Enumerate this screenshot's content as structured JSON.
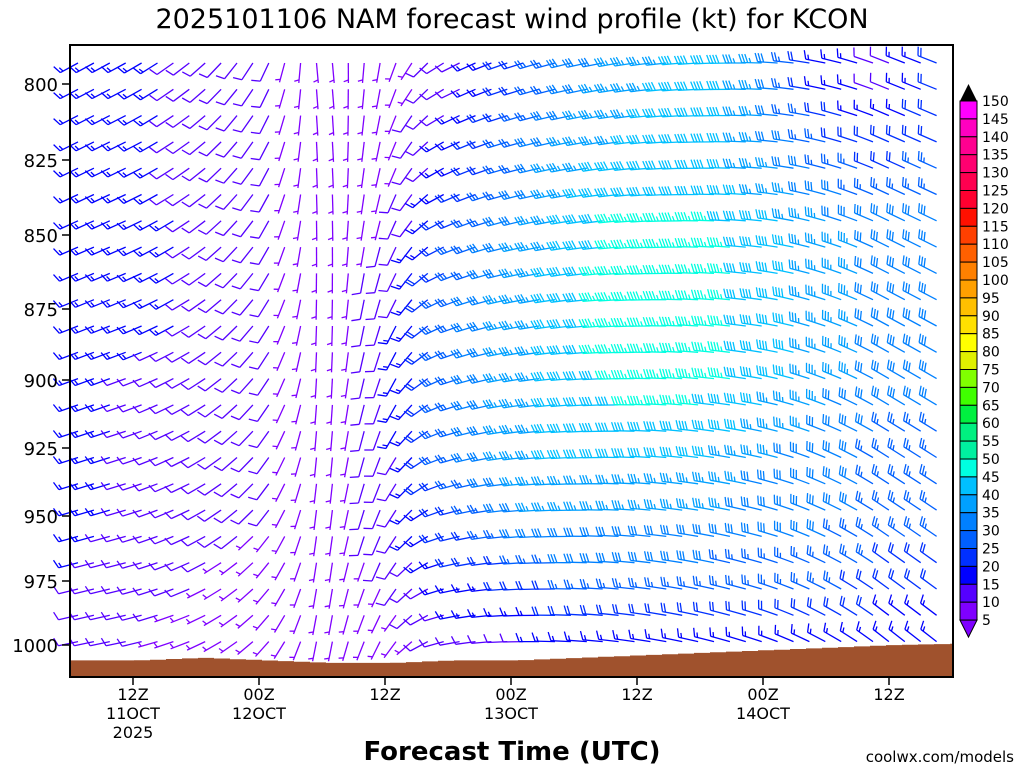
{
  "chart_data": {
    "type": "wind-barb-time-height",
    "title": "2025101106 NAM forecast wind profile (kt) for KCON",
    "xlabel": "Forecast Time (UTC)",
    "watermark": "coolwx.com/models",
    "y_ticks": [
      800,
      825,
      850,
      875,
      900,
      925,
      950,
      975,
      1000
    ],
    "y_range_hPa": [
      787,
      1012
    ],
    "x_range_hours_from_start": [
      0,
      84
    ],
    "x_ticks": [
      {
        "hour": 6,
        "line1": "12Z",
        "line2": "11OCT",
        "line3": "2025"
      },
      {
        "hour": 18,
        "line1": "00Z",
        "line2": "12OCT",
        "line3": ""
      },
      {
        "hour": 30,
        "line1": "12Z",
        "line2": "",
        "line3": ""
      },
      {
        "hour": 42,
        "line1": "00Z",
        "line2": "13OCT",
        "line3": ""
      },
      {
        "hour": 54,
        "line1": "12Z",
        "line2": "",
        "line3": ""
      },
      {
        "hour": 66,
        "line1": "00Z",
        "line2": "14OCT",
        "line3": ""
      },
      {
        "hour": 78,
        "line1": "12Z",
        "line2": "",
        "line3": ""
      }
    ],
    "grid_hours": [
      0,
      6,
      12,
      18,
      24,
      30,
      36,
      42,
      48,
      54,
      60,
      66,
      72,
      78,
      84
    ],
    "grid_levels": [
      800,
      825,
      850,
      875,
      900,
      925,
      950,
      975,
      1000
    ],
    "speed_kt": [
      [
        15,
        15,
        10,
        8,
        5,
        5,
        10,
        20,
        30,
        35,
        40,
        35,
        15,
        10,
        20
      ],
      [
        15,
        15,
        10,
        8,
        5,
        5,
        15,
        25,
        35,
        40,
        40,
        35,
        25,
        20,
        25
      ],
      [
        15,
        15,
        12,
        8,
        5,
        8,
        20,
        30,
        40,
        45,
        45,
        40,
        35,
        30,
        30
      ],
      [
        15,
        15,
        12,
        8,
        5,
        10,
        25,
        35,
        40,
        47,
        47,
        40,
        35,
        30,
        30
      ],
      [
        15,
        12,
        10,
        8,
        5,
        10,
        25,
        35,
        40,
        45,
        45,
        40,
        35,
        30,
        30
      ],
      [
        15,
        12,
        10,
        8,
        5,
        10,
        25,
        35,
        40,
        40,
        40,
        35,
        30,
        25,
        25
      ],
      [
        15,
        12,
        10,
        8,
        5,
        10,
        20,
        30,
        35,
        35,
        35,
        30,
        30,
        25,
        25
      ],
      [
        12,
        10,
        8,
        5,
        5,
        8,
        15,
        20,
        25,
        25,
        25,
        25,
        25,
        20,
        20
      ],
      [
        10,
        8,
        5,
        5,
        5,
        5,
        10,
        10,
        15,
        15,
        15,
        15,
        15,
        15,
        15
      ]
    ],
    "direction_deg": [
      250,
      250,
      240,
      220,
      180,
      200,
      250,
      260,
      265,
      270,
      275,
      280,
      290,
      300,
      300
    ],
    "surface_pressure_hPa": [
      1006,
      1006,
      1005,
      1006,
      1007,
      1007,
      1006,
      1006,
      1005,
      1004,
      1003,
      1002,
      1001,
      1000,
      999.5
    ],
    "colorbar": {
      "levels": [
        5,
        10,
        15,
        20,
        25,
        30,
        35,
        40,
        45,
        50,
        55,
        60,
        65,
        70,
        75,
        80,
        85,
        90,
        95,
        100,
        105,
        110,
        115,
        120,
        125,
        130,
        135,
        140,
        145,
        150
      ],
      "colors": [
        "#7f00ff",
        "#5500ff",
        "#0000ff",
        "#0030ff",
        "#0060ff",
        "#0080ff",
        "#00a0ff",
        "#00c0ff",
        "#00ffe0",
        "#00f0a0",
        "#00f080",
        "#00f040",
        "#40ff00",
        "#80ff00",
        "#e0f000",
        "#ffff00",
        "#ffe000",
        "#ffc000",
        "#ffa000",
        "#ff8000",
        "#ff6000",
        "#ff4000",
        "#ff1000",
        "#ff0030",
        "#ff0050",
        "#ff0070",
        "#ff0090",
        "#ff00c0",
        "#ff00ff"
      ]
    },
    "terrain_color": "#a0522d",
    "watermark_color": "#e04848"
  }
}
